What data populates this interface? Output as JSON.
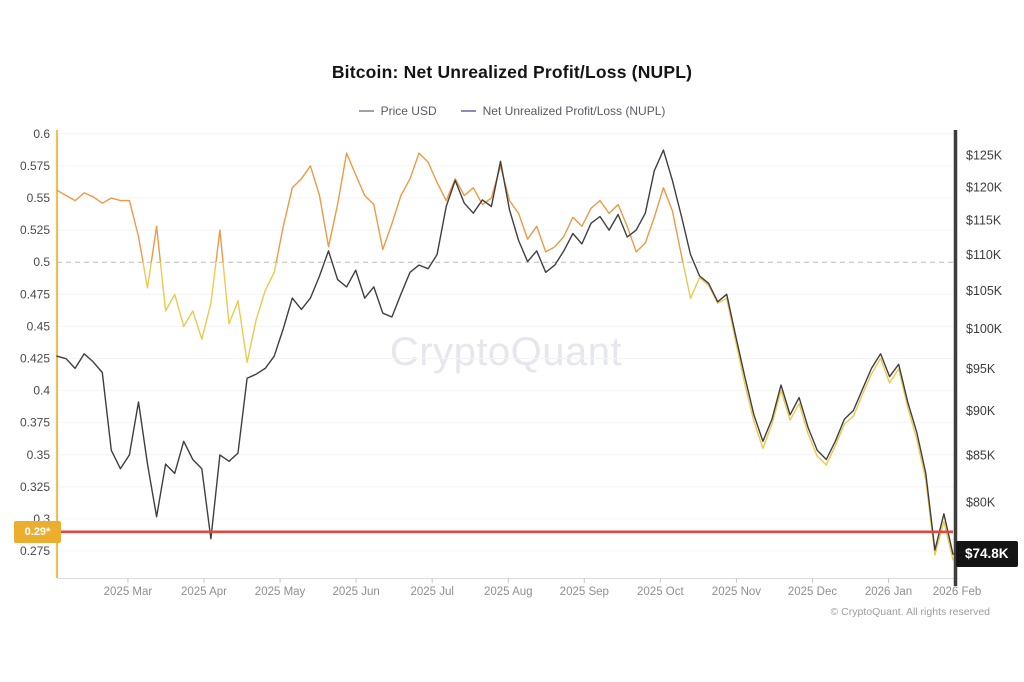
{
  "title": "Bitcoin: Net Unrealized Profit/Loss (NUPL)",
  "legend": [
    {
      "label": "Price USD",
      "color": "#a19eae"
    },
    {
      "label": "Net Unrealized Profit/Loss (NUPL)",
      "color": "#8e8ac1"
    }
  ],
  "watermark": "CryptoQuant",
  "copyright": "© CryptoQuant. All rights reserved",
  "chart_data": {
    "type": "line",
    "title": "Bitcoin: Net Unrealized Profit/Loss (NUPL)",
    "grid": "horizontal",
    "legend_position": "top-center",
    "x_tick_labels": [
      "2025 Mar",
      "2025 Apr",
      "2025 May",
      "2025 Jun",
      "2025 Jul",
      "2025 Aug",
      "2025 Sep",
      "2025 Oct",
      "2025 Nov",
      "2025 Dec",
      "2026 Jan",
      "2026 Feb"
    ],
    "left_axis": {
      "metric": "NUPL",
      "ticks": [
        0.6,
        0.575,
        0.55,
        0.525,
        0.5,
        0.475,
        0.45,
        0.425,
        0.4,
        0.375,
        0.35,
        0.325,
        0.3,
        0.275
      ],
      "range": [
        0.254,
        0.603
      ],
      "axis_color": "#ecbf57"
    },
    "right_axis": {
      "metric": "Price USD",
      "scale": "log",
      "ticks": [
        {
          "label": "$125K",
          "value": 125
        },
        {
          "label": "$120K",
          "value": 120
        },
        {
          "label": "$115K",
          "value": 115
        },
        {
          "label": "$110K",
          "value": 110
        },
        {
          "label": "$105K",
          "value": 105
        },
        {
          "label": "$100K",
          "value": 100
        },
        {
          "label": "$95K",
          "value": 95
        },
        {
          "label": "$90K",
          "value": 90
        },
        {
          "label": "$85K",
          "value": 85
        },
        {
          "label": "$80K",
          "value": 80
        }
      ],
      "range": [
        72.55,
        129.1
      ],
      "axis_color": "#3d3d3d"
    },
    "series": [
      {
        "name": "Price USD",
        "axis": "right",
        "unit": "USD thousands",
        "color": "#3f3f3f",
        "values": [
          96.5,
          96.2,
          95.0,
          96.8,
          95.8,
          94.5,
          85.5,
          83.5,
          85,
          91,
          84,
          78.5,
          84,
          83,
          86.5,
          84.5,
          83.5,
          76.3,
          85,
          84.3,
          85.2,
          93.8,
          94.3,
          95,
          96.5,
          100,
          104,
          102.5,
          104,
          107,
          110.5,
          106.5,
          105.5,
          107.8,
          104,
          105.5,
          102,
          101.5,
          104.5,
          107.5,
          108.5,
          108,
          110,
          117,
          121,
          117.5,
          116,
          118,
          117,
          124,
          116.5,
          112,
          109,
          110.5,
          107.5,
          108.5,
          110.5,
          113,
          111.5,
          114.5,
          115.5,
          113.5,
          115.8,
          112.5,
          113.5,
          116,
          122.5,
          125.8,
          121,
          115.5,
          110,
          107,
          106,
          103.5,
          104.5,
          99,
          94,
          89.5,
          86.5,
          89,
          93,
          89.5,
          91.5,
          88,
          85.5,
          84.5,
          86.5,
          89,
          90,
          92.5,
          95,
          96.8,
          94,
          95.5,
          91,
          87.5,
          83,
          75.2,
          78.8,
          74.8
        ]
      },
      {
        "name": "Net Unrealized Profit/Loss (NUPL)",
        "axis": "left",
        "color_above": "#EC9A45",
        "color_below": "#ECC94F",
        "color_threshold": 0.5,
        "values": [
          0.556,
          0.552,
          0.548,
          0.554,
          0.551,
          0.546,
          0.55,
          0.548,
          0.548,
          0.52,
          0.48,
          0.528,
          0.462,
          0.475,
          0.45,
          0.462,
          0.44,
          0.468,
          0.525,
          0.452,
          0.47,
          0.422,
          0.455,
          0.478,
          0.492,
          0.528,
          0.558,
          0.565,
          0.575,
          0.552,
          0.512,
          0.545,
          0.585,
          0.568,
          0.552,
          0.545,
          0.51,
          0.53,
          0.552,
          0.565,
          0.585,
          0.578,
          0.562,
          0.548,
          0.565,
          0.552,
          0.558,
          0.545,
          0.55,
          0.575,
          0.548,
          0.538,
          0.518,
          0.528,
          0.508,
          0.512,
          0.52,
          0.535,
          0.528,
          0.542,
          0.548,
          0.538,
          0.545,
          0.528,
          0.508,
          0.515,
          0.535,
          0.558,
          0.54,
          0.505,
          0.472,
          0.488,
          0.482,
          0.468,
          0.472,
          0.438,
          0.405,
          0.376,
          0.355,
          0.374,
          0.4,
          0.377,
          0.39,
          0.366,
          0.349,
          0.342,
          0.357,
          0.374,
          0.38,
          0.397,
          0.413,
          0.425,
          0.406,
          0.417,
          0.387,
          0.362,
          0.33,
          0.272,
          0.298,
          0.268
        ]
      }
    ],
    "annotations": {
      "dashed_hline": 0.5,
      "alert_line": {
        "value": 0.29,
        "label": "0.29*",
        "color": "#e2483d",
        "label_bg": "#ecae2f"
      },
      "last_price": {
        "text": "$74.8K",
        "bg": "#141414"
      }
    }
  }
}
